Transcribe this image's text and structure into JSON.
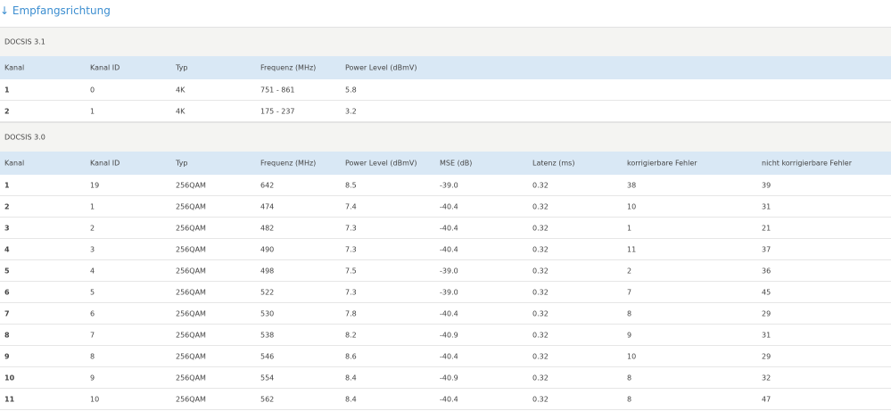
{
  "header": {
    "title": "↓ Empfangsrichtung"
  },
  "sections": [
    {
      "title": "DOCSIS 3.1",
      "columns": [
        "Kanal",
        "Kanal ID",
        "Typ",
        "Frequenz (MHz)",
        "Power Level (dBmV)"
      ],
      "rows": [
        [
          "1",
          "0",
          "4K",
          "751 - 861",
          "5.8"
        ],
        [
          "2",
          "1",
          "4K",
          "175 - 237",
          "3.2"
        ]
      ]
    },
    {
      "title": "DOCSIS 3.0",
      "columns": [
        "Kanal",
        "Kanal ID",
        "Typ",
        "Frequenz (MHz)",
        "Power Level (dBmV)",
        "MSE (dB)",
        "Latenz (ms)",
        "korrigierbare Fehler",
        "nicht korrigierbare Fehler"
      ],
      "rows": [
        [
          "1",
          "19",
          "256QAM",
          "642",
          "8.5",
          "-39.0",
          "0.32",
          "38",
          "39"
        ],
        [
          "2",
          "1",
          "256QAM",
          "474",
          "7.4",
          "-40.4",
          "0.32",
          "10",
          "31"
        ],
        [
          "3",
          "2",
          "256QAM",
          "482",
          "7.3",
          "-40.4",
          "0.32",
          "1",
          "21"
        ],
        [
          "4",
          "3",
          "256QAM",
          "490",
          "7.3",
          "-40.4",
          "0.32",
          "11",
          "37"
        ],
        [
          "5",
          "4",
          "256QAM",
          "498",
          "7.5",
          "-39.0",
          "0.32",
          "2",
          "36"
        ],
        [
          "6",
          "5",
          "256QAM",
          "522",
          "7.3",
          "-39.0",
          "0.32",
          "7",
          "45"
        ],
        [
          "7",
          "6",
          "256QAM",
          "530",
          "7.8",
          "-40.4",
          "0.32",
          "8",
          "29"
        ],
        [
          "8",
          "7",
          "256QAM",
          "538",
          "8.2",
          "-40.9",
          "0.32",
          "9",
          "31"
        ],
        [
          "9",
          "8",
          "256QAM",
          "546",
          "8.6",
          "-40.4",
          "0.32",
          "10",
          "29"
        ],
        [
          "10",
          "9",
          "256QAM",
          "554",
          "8.4",
          "-40.9",
          "0.32",
          "8",
          "32"
        ],
        [
          "11",
          "10",
          "256QAM",
          "562",
          "8.4",
          "-40.4",
          "0.32",
          "8",
          "47"
        ]
      ]
    }
  ]
}
